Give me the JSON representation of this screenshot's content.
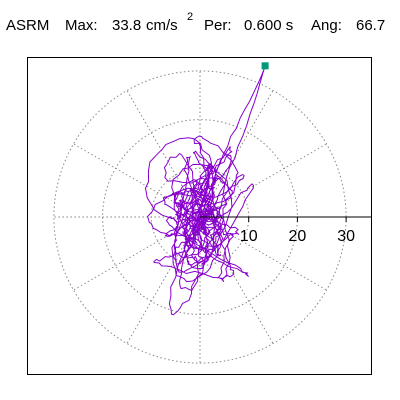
{
  "header": {
    "label": "ASRM",
    "max_label": "Max:",
    "max_value": "33.8",
    "max_unit": "cm/s",
    "max_exponent": "2",
    "period_label": "Per:",
    "period_value": "0.600 s",
    "angle_label": "Ang:",
    "angle_value": "66.7"
  },
  "plot": {
    "type": "polar-orbit",
    "radial_ticks": [
      "10",
      "20",
      "30"
    ],
    "radial_tick_values": [
      10,
      20,
      30
    ],
    "max_radius": 30,
    "peak": {
      "magnitude": 33.8,
      "angle_deg": 66.7
    },
    "colors": {
      "trace": "#8800cc",
      "grid": "#888888",
      "axis": "#000000",
      "peak_marker": "#009977"
    }
  }
}
